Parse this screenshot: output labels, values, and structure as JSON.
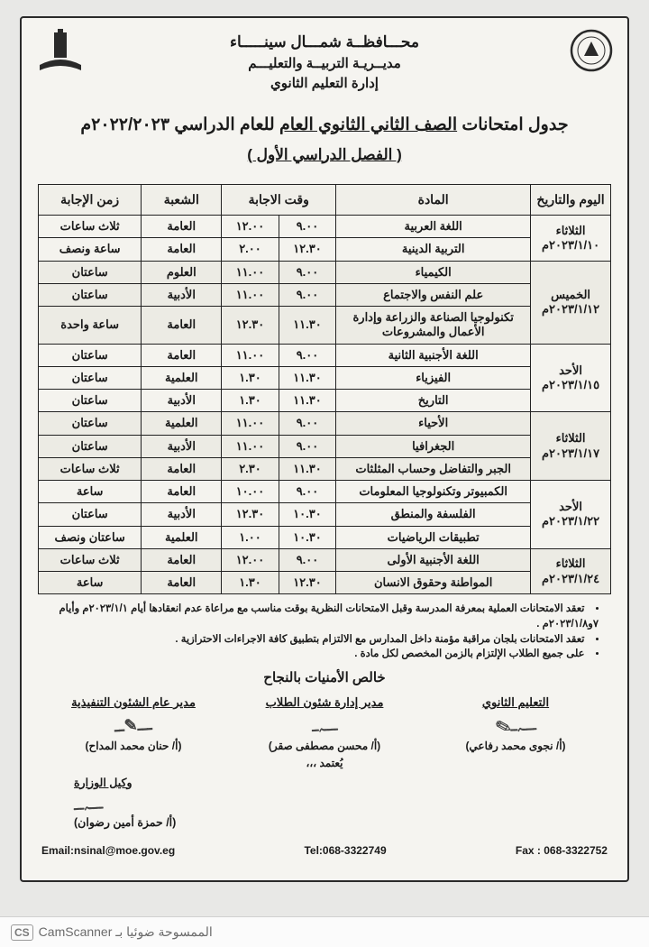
{
  "header": {
    "line1": "محـــافظــة شمـــال سينـــــاء",
    "line2": "مديــريـة التربيــة والتعليـــم",
    "line3": "إدارة التعليم الثانوي"
  },
  "title": {
    "prefix": "جدول امتحانات ",
    "underlined": "الصف الثاني الثانوي العام",
    "suffix": " للعام الدراسي ٢٠٢٢/٢٠٢٣م"
  },
  "subtitle": "( الفصل الدراسي الأول )",
  "columns": {
    "day": "اليوم والتاريخ",
    "subject": "المادة",
    "time": "وقت الاجابة",
    "branch": "الشعبة",
    "duration": "زمن الإجابة"
  },
  "groups": [
    {
      "shade": "a",
      "day": "الثلاثاء\n٢٠٢٣/١/١٠م",
      "rows": [
        {
          "subject": "اللغة العربية",
          "from": "٩.٠٠",
          "to": "١٢.٠٠",
          "branch": "العامة",
          "duration": "ثلاث ساعات"
        },
        {
          "subject": "التربية الدينية",
          "from": "١٢.٣٠",
          "to": "٢.٠٠",
          "branch": "العامة",
          "duration": "ساعة ونصف"
        }
      ]
    },
    {
      "shade": "b",
      "day": "الخميس\n٢٠٢٣/١/١٢م",
      "rows": [
        {
          "subject": "الكيمياء",
          "from": "٩.٠٠",
          "to": "١١.٠٠",
          "branch": "العلوم",
          "duration": "ساعتان"
        },
        {
          "subject": "علم النفس والاجتماع",
          "from": "٩.٠٠",
          "to": "١١.٠٠",
          "branch": "الأدبية",
          "duration": "ساعتان"
        },
        {
          "subject": "تكنولوجيا الصناعة والزراعة وإدارة الأعمال والمشروعات",
          "from": "١١.٣٠",
          "to": "١٢.٣٠",
          "branch": "العامة",
          "duration": "ساعة واحدة"
        }
      ]
    },
    {
      "shade": "a",
      "day": "الأحد\n٢٠٢٣/١/١٥م",
      "rows": [
        {
          "subject": "اللغة الأجنبية الثانية",
          "from": "٩.٠٠",
          "to": "١١.٠٠",
          "branch": "العامة",
          "duration": "ساعتان"
        },
        {
          "subject": "الفيزياء",
          "from": "١١.٣٠",
          "to": "١.٣٠",
          "branch": "العلمية",
          "duration": "ساعتان"
        },
        {
          "subject": "التاريخ",
          "from": "١١.٣٠",
          "to": "١.٣٠",
          "branch": "الأدبية",
          "duration": "ساعتان"
        }
      ]
    },
    {
      "shade": "b",
      "day": "الثلاثاء\n٢٠٢٣/١/١٧م",
      "rows": [
        {
          "subject": "الأحياء",
          "from": "٩.٠٠",
          "to": "١١.٠٠",
          "branch": "العلمية",
          "duration": "ساعتان"
        },
        {
          "subject": "الجغرافيا",
          "from": "٩.٠٠",
          "to": "١١.٠٠",
          "branch": "الأدبية",
          "duration": "ساعتان"
        },
        {
          "subject": "الجبر والتفاضل وحساب المثلثات",
          "from": "١١.٣٠",
          "to": "٢.٣٠",
          "branch": "العامة",
          "duration": "ثلاث ساعات"
        }
      ]
    },
    {
      "shade": "a",
      "day": "الأحد\n٢٠٢٣/١/٢٢م",
      "rows": [
        {
          "subject": "الكمبيوتر وتكنولوجيا المعلومات",
          "from": "٩.٠٠",
          "to": "١٠.٠٠",
          "branch": "العامة",
          "duration": "ساعة"
        },
        {
          "subject": "الفلسفة والمنطق",
          "from": "١٠.٣٠",
          "to": "١٢.٣٠",
          "branch": "الأدبية",
          "duration": "ساعتان"
        },
        {
          "subject": "تطبيقات الرياضيات",
          "from": "١٠.٣٠",
          "to": "١.٠٠",
          "branch": "العلمية",
          "duration": "ساعتان ونصف"
        }
      ]
    },
    {
      "shade": "b",
      "day": "الثلاثاء\n٢٠٢٣/١/٢٤م",
      "rows": [
        {
          "subject": "اللغة الأجنبية الأولى",
          "from": "٩.٠٠",
          "to": "١٢.٠٠",
          "branch": "العامة",
          "duration": "ثلاث ساعات"
        },
        {
          "subject": "المواطنة وحقوق الانسان",
          "from": "١٢.٣٠",
          "to": "١.٣٠",
          "branch": "العامة",
          "duration": "ساعة"
        }
      ]
    }
  ],
  "notes": [
    "تعقد الامتحانات العملية بمعرفة المدرسة وقبل الامتحانات النظرية بوقت مناسب مع مراعاة عدم انعقادها أيام ٢٠٢٣/١/١م وأيام ٧و٢٠٢٣/١/٨م .",
    "تعقد الامتحانات بلجان مراقبة مؤمنة داخل المدارس مع الالتزام بتطبيق كافة الاجراءات الاحترازية .",
    "على جميع الطلاب الإلتزام بالزمن المخصص لكل مادة ."
  ],
  "wish": "خالص الأمنيات بالنجاح",
  "signatures": {
    "col1": {
      "role": "التعليم الثانوي",
      "name": "(أ/ نجوى محمد رفاعي)"
    },
    "col2": {
      "role": "مدير إدارة شئون الطلاب",
      "name": "(أ/ محسن مصطفى صقر)",
      "approve": "يُعتمد ،،،"
    },
    "col3": {
      "role": "مدير عام الشئون التنفيذية",
      "name": "(أ/ حنان محمد المداح)"
    },
    "extra": {
      "role": "وكيل الوزارة",
      "name": "(أ/ حمزة أمين رضوان)"
    }
  },
  "contact": {
    "fax": "Fax : 068-3322752",
    "tel": "Tel:068-3322749",
    "email": "Email:nsinal@moe.gov.eg"
  },
  "footer": {
    "badge": "CS",
    "text": "CamScanner الممسوحة ضوئيا بـ"
  },
  "style": {
    "page_bg": "#e8e8e6",
    "sheet_bg": "#f5f4f0",
    "border_color": "#222222",
    "shade_a": "#f4f3ee",
    "shade_b": "#ecebe4",
    "header_bg": "#f0efe9"
  }
}
